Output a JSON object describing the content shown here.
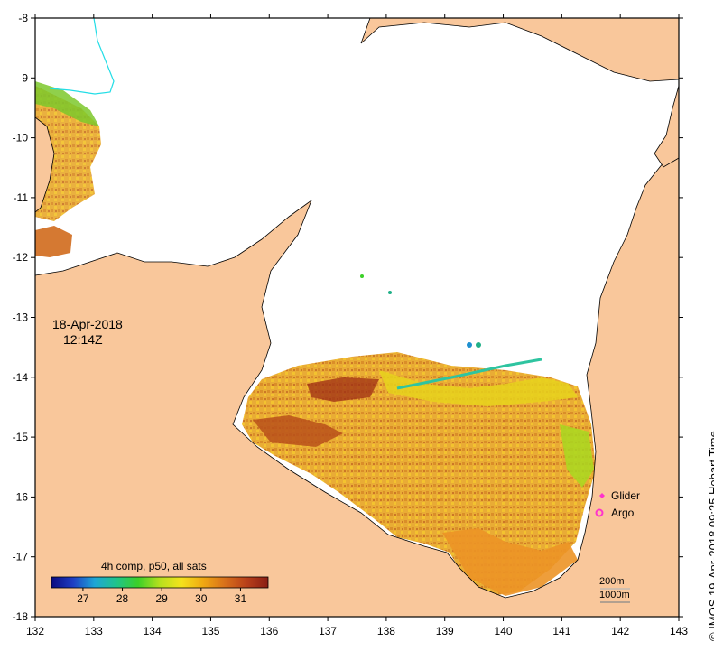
{
  "map": {
    "lon_ticks": [
      132,
      133,
      134,
      135,
      136,
      137,
      138,
      139,
      140,
      141,
      142,
      143
    ],
    "lat_ticks": [
      -8,
      -9,
      -10,
      -11,
      -12,
      -13,
      -14,
      -15,
      -16,
      -17,
      -18
    ],
    "colors": {
      "land": "#f9c79b",
      "sea": "#ffffff",
      "coast": "#000000",
      "river": "#22dde6",
      "frame": "#000000"
    }
  },
  "date_label": {
    "date": "18-Apr-2018",
    "time": "12:14Z"
  },
  "colorbar": {
    "title": "4h comp, p50, all sats",
    "tick_labels": [
      "27",
      "28",
      "29",
      "30",
      "31"
    ],
    "stops": [
      "#0a0a80",
      "#1e3ec4",
      "#1ea6d6",
      "#20c48a",
      "#3cd028",
      "#b6e01e",
      "#f4e21c",
      "#f0a812",
      "#d8701a",
      "#b8401a",
      "#8a1e14"
    ]
  },
  "markers": {
    "glider": {
      "label": "Glider",
      "color": "#ff33cc"
    },
    "argo": {
      "label": "Argo",
      "color": "#ff33cc"
    }
  },
  "scale": {
    "depth1": "200m",
    "depth2": "1000m"
  },
  "caption": "© IMOS 19-Apr-2018 09:25 Hobart Time"
}
